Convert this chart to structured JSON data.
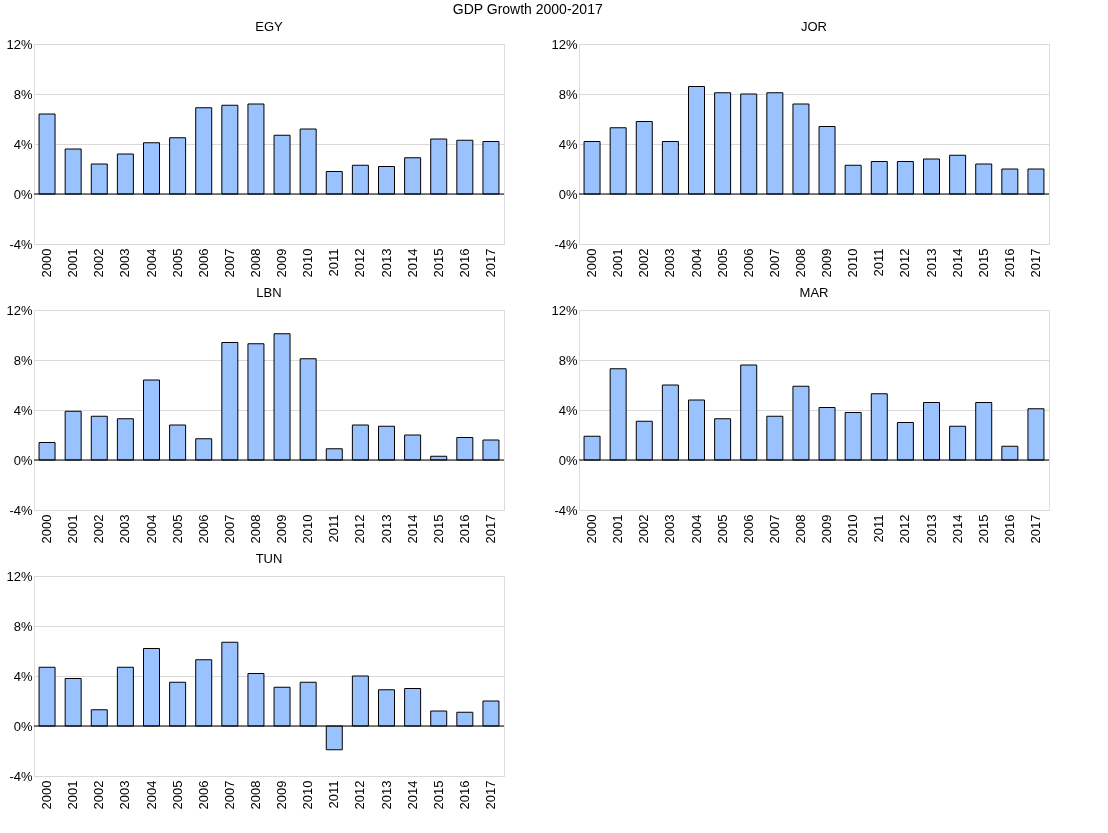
{
  "chart_data": [
    {
      "type": "bar",
      "title": "EGY",
      "annotations": [
        "GDP Growth 2000-2017"
      ],
      "categories": [
        "2000",
        "2001",
        "2002",
        "2003",
        "2004",
        "2005",
        "2006",
        "2007",
        "2008",
        "2009",
        "2010",
        "2011",
        "2012",
        "2013",
        "2014",
        "2015",
        "2016",
        "2017"
      ],
      "series": [
        {
          "color": "#99c2ff",
          "values": [
            6.4,
            3.6,
            2.4,
            3.2,
            4.1,
            4.5,
            6.9,
            7.1,
            7.2,
            4.7,
            5.2,
            1.8,
            2.3,
            2.2,
            2.9,
            4.4,
            4.3,
            4.2
          ]
        }
      ],
      "ylim": [
        -4,
        12
      ],
      "yticks": [
        {
          "value": -4,
          "label": "-4%"
        },
        {
          "value": 0,
          "label": "0%"
        },
        {
          "value": 4,
          "label": "4%"
        },
        {
          "value": 8,
          "label": "8%"
        },
        {
          "value": 12,
          "label": "12%"
        }
      ],
      "grid": "y",
      "legend": false,
      "ref_lines": [
        {
          "axis": "y",
          "value": 0,
          "color": "#000000"
        }
      ]
    },
    {
      "type": "bar",
      "title": "JOR",
      "categories": [
        "2000",
        "2001",
        "2002",
        "2003",
        "2004",
        "2005",
        "2006",
        "2007",
        "2008",
        "2009",
        "2010",
        "2011",
        "2012",
        "2013",
        "2014",
        "2015",
        "2016",
        "2017"
      ],
      "series": [
        {
          "color": "#99c2ff",
          "values": [
            4.2,
            5.3,
            5.8,
            4.2,
            8.6,
            8.1,
            8.0,
            8.1,
            7.2,
            5.4,
            2.3,
            2.6,
            2.6,
            2.8,
            3.1,
            2.4,
            2.0,
            2.0
          ]
        }
      ],
      "ylim": [
        -4,
        12
      ],
      "yticks": [
        {
          "value": -4,
          "label": "-4%"
        },
        {
          "value": 0,
          "label": "0%"
        },
        {
          "value": 4,
          "label": "4%"
        },
        {
          "value": 8,
          "label": "8%"
        },
        {
          "value": 12,
          "label": "12%"
        }
      ],
      "grid": "y",
      "legend": false,
      "ref_lines": [
        {
          "axis": "y",
          "value": 0,
          "color": "#000000"
        }
      ]
    },
    {
      "type": "bar",
      "title": "LBN",
      "categories": [
        "2000",
        "2001",
        "2002",
        "2003",
        "2004",
        "2005",
        "2006",
        "2007",
        "2008",
        "2009",
        "2010",
        "2011",
        "2012",
        "2013",
        "2014",
        "2015",
        "2016",
        "2017"
      ],
      "series": [
        {
          "color": "#99c2ff",
          "values": [
            1.4,
            3.9,
            3.5,
            3.3,
            6.4,
            2.8,
            1.7,
            9.4,
            9.3,
            10.1,
            8.1,
            0.9,
            2.8,
            2.7,
            2.0,
            0.3,
            1.8,
            1.6
          ]
        }
      ],
      "ylim": [
        -4,
        12
      ],
      "yticks": [
        {
          "value": -4,
          "label": "-4%"
        },
        {
          "value": 0,
          "label": "0%"
        },
        {
          "value": 4,
          "label": "4%"
        },
        {
          "value": 8,
          "label": "8%"
        },
        {
          "value": 12,
          "label": "12%"
        }
      ],
      "grid": "y",
      "legend": false,
      "ref_lines": [
        {
          "axis": "y",
          "value": 0,
          "color": "#000000"
        }
      ]
    },
    {
      "type": "bar",
      "title": "MAR",
      "categories": [
        "2000",
        "2001",
        "2002",
        "2003",
        "2004",
        "2005",
        "2006",
        "2007",
        "2008",
        "2009",
        "2010",
        "2011",
        "2012",
        "2013",
        "2014",
        "2015",
        "2016",
        "2017"
      ],
      "series": [
        {
          "color": "#99c2ff",
          "values": [
            1.9,
            7.3,
            3.1,
            6.0,
            4.8,
            3.3,
            7.6,
            3.5,
            5.9,
            4.2,
            3.8,
            5.3,
            3.0,
            4.6,
            2.7,
            4.6,
            1.1,
            4.1
          ]
        }
      ],
      "ylim": [
        -4,
        12
      ],
      "yticks": [
        {
          "value": -4,
          "label": "-4%"
        },
        {
          "value": 0,
          "label": "0%"
        },
        {
          "value": 4,
          "label": "4%"
        },
        {
          "value": 8,
          "label": "8%"
        },
        {
          "value": 12,
          "label": "12%"
        }
      ],
      "grid": "y",
      "legend": false,
      "ref_lines": [
        {
          "axis": "y",
          "value": 0,
          "color": "#000000"
        }
      ]
    },
    {
      "type": "bar",
      "title": "TUN",
      "categories": [
        "2000",
        "2001",
        "2002",
        "2003",
        "2004",
        "2005",
        "2006",
        "2007",
        "2008",
        "2009",
        "2010",
        "2011",
        "2012",
        "2013",
        "2014",
        "2015",
        "2016",
        "2017"
      ],
      "series": [
        {
          "color": "#99c2ff",
          "values": [
            4.7,
            3.8,
            1.3,
            4.7,
            6.2,
            3.5,
            5.3,
            6.7,
            4.2,
            3.1,
            3.5,
            -1.9,
            4.0,
            2.9,
            3.0,
            1.2,
            1.1,
            2.0
          ]
        }
      ],
      "ylim": [
        -4,
        12
      ],
      "yticks": [
        {
          "value": -4,
          "label": "-4%"
        },
        {
          "value": 0,
          "label": "0%"
        },
        {
          "value": 4,
          "label": "4%"
        },
        {
          "value": 8,
          "label": "8%"
        },
        {
          "value": 12,
          "label": "12%"
        }
      ],
      "grid": "y",
      "legend": false,
      "ref_lines": [
        {
          "axis": "y",
          "value": 0,
          "color": "#000000"
        }
      ]
    }
  ]
}
